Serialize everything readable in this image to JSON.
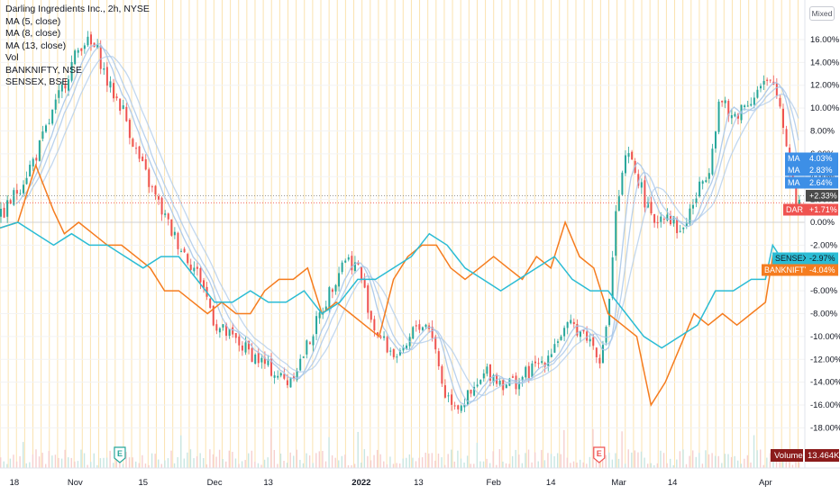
{
  "legend": {
    "title": "Darling Ingredients Inc., 2h, NYSE",
    "items": [
      "MA (5, close)",
      "MA (8, close)",
      "MA (13, close)",
      "Vol",
      "BANKNIFTY, NSE",
      "SENSEX, BSE"
    ]
  },
  "scale_button": "Mixed",
  "colors": {
    "up": "#26a69a",
    "down": "#ef5350",
    "ma": "#a9c7e8",
    "banknifty": "#f57c1f",
    "sensex": "#2bbcd4",
    "grid_v": "#fbe3b0",
    "grid_h": "#f3f3f3",
    "zero": "#d0d0d0"
  },
  "chart_data": {
    "type": "line",
    "title": "Darling Ingredients Inc., 2h, NYSE",
    "ylim": [
      -20,
      18
    ],
    "yticks": [
      16,
      14,
      12,
      10,
      8,
      6,
      4,
      2,
      0,
      -2,
      -4,
      -6,
      -8,
      -10,
      -12,
      -14,
      -16,
      -18
    ],
    "ytick_labels": [
      "16.00%",
      "14.00%",
      "12.00%",
      "10.00%",
      "8.00%",
      "6.00%",
      "4.00%",
      "2.00%",
      "0.00%",
      "-2.00%",
      "-4.00%",
      "-6.00%",
      "-8.00%",
      "-10.00%",
      "-12.00%",
      "-14.00%",
      "-16.00%",
      "-18.00%"
    ],
    "x_labels": [
      {
        "t": 4,
        "label": "18",
        "bold": false
      },
      {
        "t": 21,
        "label": "Nov",
        "bold": false
      },
      {
        "t": 40,
        "label": "15",
        "bold": false
      },
      {
        "t": 60,
        "label": "Dec",
        "bold": false
      },
      {
        "t": 75,
        "label": "13",
        "bold": false
      },
      {
        "t": 101,
        "label": "2022",
        "bold": true
      },
      {
        "t": 117,
        "label": "13",
        "bold": false
      },
      {
        "t": 138,
        "label": "Feb",
        "bold": false
      },
      {
        "t": 154,
        "label": "14",
        "bold": false
      },
      {
        "t": 173,
        "label": "Mar",
        "bold": false
      },
      {
        "t": 188,
        "label": "14",
        "bold": false
      },
      {
        "t": 214,
        "label": "Apr",
        "bold": false
      }
    ],
    "t_range": [
      0,
      225
    ],
    "series": [
      {
        "name": "DAR",
        "type": "line",
        "x": [
          0,
          5,
          10,
          15,
          20,
          23,
          27,
          30,
          34,
          38,
          42,
          48,
          52,
          56,
          60,
          64,
          68,
          72,
          76,
          80,
          84,
          88,
          92,
          96,
          100,
          104,
          108,
          112,
          116,
          120,
          124,
          128,
          132,
          136,
          140,
          144,
          148,
          152,
          156,
          160,
          164,
          168,
          170,
          172,
          175,
          178,
          182,
          186,
          190,
          194,
          198,
          201,
          204,
          207,
          210,
          213,
          216,
          218,
          220,
          222,
          224
        ],
        "y": [
          0.5,
          3,
          6,
          10,
          14,
          16,
          15,
          12,
          10,
          6,
          3,
          -1,
          -3,
          -5,
          -9,
          -10,
          -11,
          -12,
          -13,
          -14,
          -12,
          -9,
          -6,
          -3,
          -4,
          -9,
          -11,
          -12,
          -9,
          -9,
          -15,
          -16,
          -15,
          -13,
          -14,
          -14,
          -13,
          -12,
          -10,
          -9,
          -10,
          -12,
          -7,
          1,
          6,
          4,
          0,
          1,
          -1,
          2,
          5,
          11,
          9,
          10,
          11,
          12,
          12,
          10,
          6,
          2,
          1.7
        ],
        "last_label": "+1.71%"
      },
      {
        "name": "BANKNIFTY",
        "type": "line",
        "x": [
          0,
          5,
          10,
          15,
          18,
          22,
          26,
          30,
          34,
          38,
          42,
          46,
          50,
          54,
          58,
          62,
          66,
          70,
          74,
          78,
          82,
          86,
          90,
          94,
          98,
          102,
          106,
          110,
          114,
          118,
          122,
          126,
          130,
          134,
          138,
          142,
          146,
          150,
          154,
          158,
          162,
          166,
          170,
          174,
          178,
          182,
          186,
          190,
          194,
          198,
          202,
          206,
          210,
          214,
          216,
          218
        ],
        "y": [
          -0.5,
          0,
          5,
          1,
          -1,
          0,
          -1,
          -2,
          -2,
          -3,
          -4,
          -6,
          -6,
          -7,
          -8,
          -7,
          -8,
          -8,
          -6,
          -5,
          -5,
          -4,
          -8,
          -7,
          -8,
          -9,
          -10,
          -5,
          -3,
          -2,
          -2,
          -4,
          -5,
          -4,
          -3,
          -4,
          -5,
          -3,
          -4,
          0,
          -3,
          -4,
          -8,
          -9,
          -10,
          -16,
          -14,
          -11,
          -8,
          -9,
          -8,
          -9,
          -8,
          -7,
          -3,
          -4.04
        ],
        "last_label": "-4.04%"
      },
      {
        "name": "SENSEX",
        "type": "line",
        "x": [
          0,
          5,
          10,
          15,
          20,
          25,
          30,
          35,
          40,
          45,
          50,
          55,
          60,
          65,
          70,
          75,
          80,
          85,
          90,
          95,
          100,
          105,
          110,
          115,
          120,
          125,
          130,
          135,
          140,
          145,
          150,
          155,
          160,
          165,
          170,
          175,
          180,
          185,
          190,
          195,
          200,
          205,
          210,
          214,
          216,
          218
        ],
        "y": [
          -0.5,
          0,
          -1,
          -2,
          -1,
          -2,
          -2,
          -3,
          -4,
          -3,
          -3,
          -5,
          -7,
          -7,
          -6,
          -7,
          -7,
          -6,
          -8,
          -7,
          -5,
          -5,
          -4,
          -3,
          -1,
          -2,
          -4,
          -5,
          -6,
          -5,
          -4,
          -3,
          -5,
          -6,
          -6,
          -8,
          -10,
          -11,
          -10,
          -9,
          -6,
          -6,
          -5,
          -5,
          -2,
          -2.97
        ],
        "last_label": "-2.97%"
      }
    ],
    "ma_labels": [
      {
        "name": "MA",
        "value": "4.03%"
      },
      {
        "name": "MA",
        "value": "2.83%"
      },
      {
        "name": "MA",
        "value": "2.64%"
      }
    ],
    "current_label": "+2.33%",
    "volume": {
      "label": "Volume",
      "value": "13.464K"
    }
  }
}
